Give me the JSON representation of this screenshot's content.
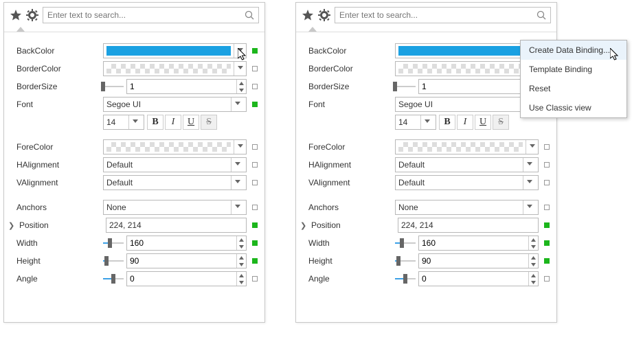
{
  "search_placeholder": "Enter text to search...",
  "props": {
    "backcolor": "BackColor",
    "bordercolor": "BorderColor",
    "bordersize": "BorderSize",
    "bordersize_val": "1",
    "font": "Font",
    "font_family": "Segoe UI",
    "font_size": "14",
    "forecolor": "ForeColor",
    "halign": "HAlignment",
    "halign_val": "Default",
    "valign": "VAlignment",
    "valign_val": "Default",
    "anchors": "Anchors",
    "anchors_val": "None",
    "position": "Position",
    "position_val": "224, 214",
    "width": "Width",
    "width_val": "160",
    "height": "Height",
    "height_val": "90",
    "angle": "Angle",
    "angle_val": "0"
  },
  "menu": {
    "create": "Create Data Binding...",
    "template": "Template Binding",
    "reset": "Reset",
    "classic": "Use Classic view"
  },
  "sliders": {
    "bordersize_fill": 0,
    "bordersize_thumb": 0,
    "width_fill": 34,
    "width_thumb": 34,
    "height_fill": 18,
    "height_thumb": 18,
    "angle_fill": 50,
    "angle_thumb": 50
  },
  "colors": {
    "accent": "#1ba1e2",
    "marker_on": "#1cb61c"
  }
}
